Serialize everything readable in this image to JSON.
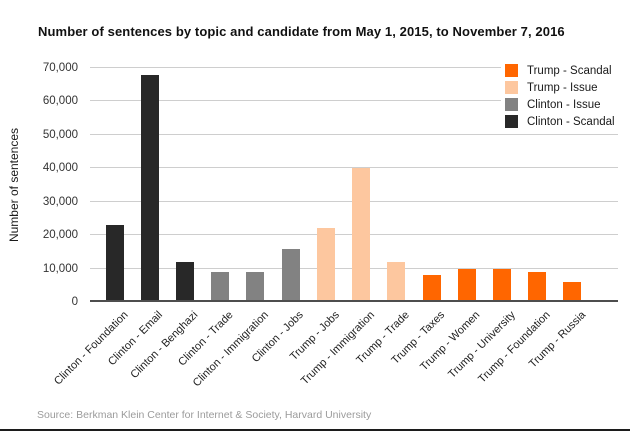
{
  "title": "Number of sentences by topic and candidate from May 1, 2015, to November 7, 2016",
  "source": "Source: Berkman Klein Center for Internet & Society, Harvard University",
  "y_axis": {
    "label": "Number of sentences",
    "tick_labels": [
      "0",
      "10,000",
      "20,000",
      "30,000",
      "40,000",
      "50,000",
      "60,000",
      "70,000"
    ]
  },
  "legend": {
    "position": "top-right",
    "entries": [
      {
        "label": "Trump - Scandal",
        "color": "#ff6600"
      },
      {
        "label": "Trump - Issue",
        "color": "#fdc79f"
      },
      {
        "label": "Clinton - Issue",
        "color": "#828282"
      },
      {
        "label": "Clinton - Scandal",
        "color": "#282828"
      }
    ]
  },
  "chart_data": {
    "type": "bar",
    "title": "Number of sentences by topic and candidate from May 1, 2015, to November 7, 2016",
    "xlabel": "",
    "ylabel": "Number of sentences",
    "ylim": [
      0,
      70000
    ],
    "ytick_step": 10000,
    "grid": true,
    "legend_position": "top-right",
    "categories": [
      "Clinton - Foundation",
      "Clinton - Email",
      "Clinton - Benghazi",
      "Clinton - Trade",
      "Clinton - Immigration",
      "Clinton - Jobs",
      "Trump - Jobs",
      "Trump - Immigration",
      "Trump - Trade",
      "Trump - Taxes",
      "Trump - Women",
      "Trump - University",
      "Trump - Foundation",
      "Trump - Russia"
    ],
    "values": [
      23000,
      68000,
      12000,
      9000,
      9000,
      16000,
      22000,
      40000,
      12000,
      8000,
      10000,
      10000,
      9000,
      6000
    ],
    "groups": [
      "Clinton - Scandal",
      "Clinton - Scandal",
      "Clinton - Scandal",
      "Clinton - Issue",
      "Clinton - Issue",
      "Clinton - Issue",
      "Trump - Issue",
      "Trump - Issue",
      "Trump - Issue",
      "Trump - Scandal",
      "Trump - Scandal",
      "Trump - Scandal",
      "Trump - Scandal",
      "Trump - Scandal"
    ],
    "group_colors": {
      "Trump - Scandal": "#ff6600",
      "Trump - Issue": "#fdc79f",
      "Clinton - Issue": "#828282",
      "Clinton - Scandal": "#282828"
    }
  }
}
